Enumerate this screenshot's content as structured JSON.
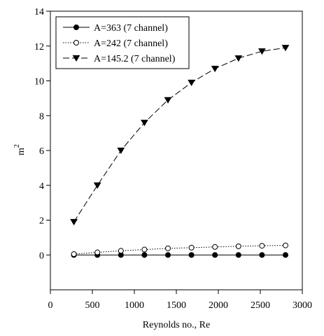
{
  "chart_data": {
    "type": "line",
    "title": "",
    "xlabel": "Reynolds no., Re",
    "ylabel": "m",
    "ylabel_sup": "2",
    "xlim": [
      0,
      3000
    ],
    "ylim": [
      -2,
      14
    ],
    "xticks": [
      0,
      500,
      1000,
      1500,
      2000,
      2500,
      3000
    ],
    "yticks": [
      0,
      2,
      4,
      6,
      8,
      10,
      12,
      14
    ],
    "grid": false,
    "legend_position": "top-left",
    "x": [
      280,
      560,
      840,
      1120,
      1400,
      1680,
      1960,
      2240,
      2520,
      2800
    ],
    "series": [
      {
        "name": "A=363 (7 channel)",
        "marker": "filled-circle",
        "line": "solid",
        "values": [
          0,
          0,
          0,
          0,
          0,
          0,
          0,
          0,
          0,
          0
        ]
      },
      {
        "name": "A=242 (7 channel)",
        "marker": "open-circle",
        "line": "dotted",
        "values": [
          0.05,
          0.15,
          0.24,
          0.31,
          0.38,
          0.42,
          0.46,
          0.5,
          0.53,
          0.55
        ]
      },
      {
        "name": "A=145.2 (7 channel)",
        "marker": "filled-triangle-down",
        "line": "dashed",
        "values": [
          1.9,
          4.0,
          6.0,
          7.6,
          8.9,
          9.9,
          10.7,
          11.3,
          11.7,
          11.9
        ]
      }
    ]
  }
}
